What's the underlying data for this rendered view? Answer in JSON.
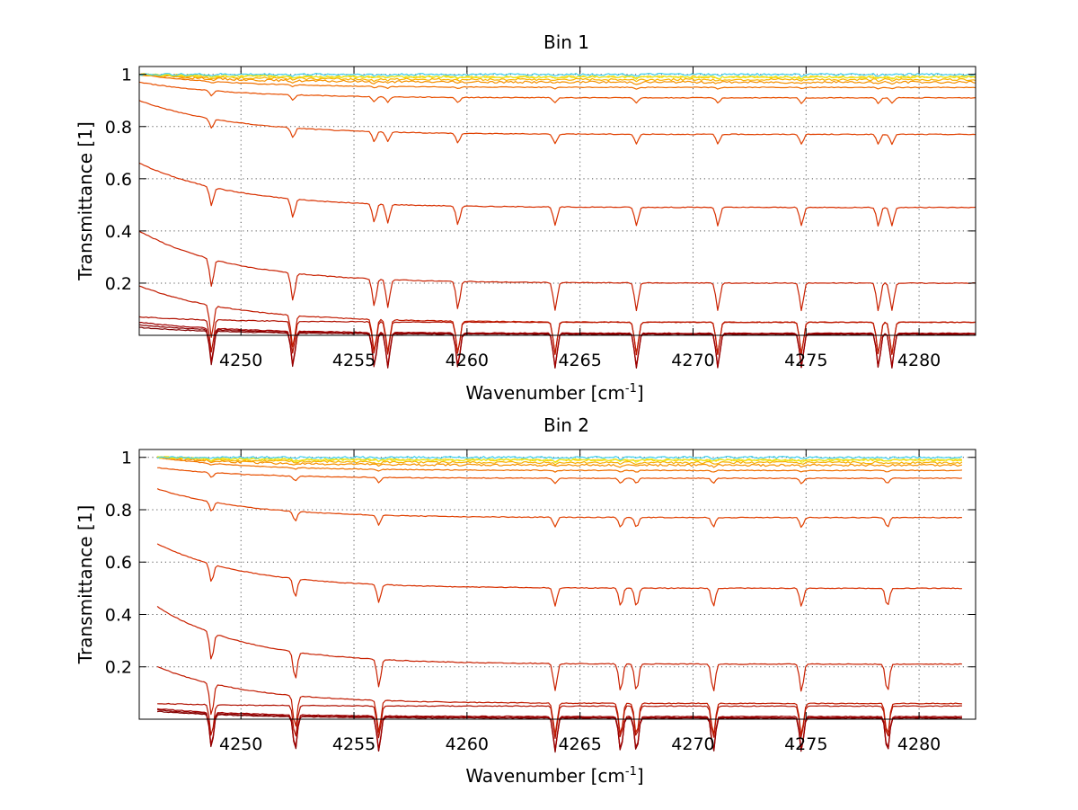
{
  "chart_data": [
    {
      "type": "line",
      "title": "Bin 1",
      "xlabel": "Wavenumber [cm",
      "xlabel_sup": "-1",
      "xlabel_end": "]",
      "ylabel": "Transmittance [1]",
      "xlim": [
        4245.5,
        4282.5
      ],
      "ylim": [
        0,
        1.03
      ],
      "xticks": [
        4250,
        4255,
        4260,
        4265,
        4270,
        4275,
        4280
      ],
      "yticks": [
        0.2,
        0.4,
        0.6,
        0.8,
        1
      ],
      "ytick_labels": [
        "0.2",
        "0.4",
        "0.6",
        "0.8",
        "1"
      ],
      "grid": true,
      "x_range": [
        4245.5,
        4282.5
      ],
      "absorption_lines_cm1": [
        4248.7,
        4252.3,
        4255.9,
        4256.5,
        4259.6,
        4263.9,
        4267.5,
        4271.1,
        4274.8,
        4278.2,
        4278.8
      ],
      "series": [
        {
          "color": "#800000",
          "start": 0.03,
          "end": 0.004
        },
        {
          "color": "#8b0000",
          "start": 0.04,
          "end": 0.006
        },
        {
          "color": "#a00000",
          "start": 0.05,
          "end": 0.008
        },
        {
          "color": "#b01000",
          "start": 0.07,
          "end": 0.05
        },
        {
          "color": "#c01a00",
          "start": 0.19,
          "end": 0.05
        },
        {
          "color": "#c82000",
          "start": 0.4,
          "end": 0.2
        },
        {
          "color": "#d83000",
          "start": 0.66,
          "end": 0.49
        },
        {
          "color": "#e04000",
          "start": 0.9,
          "end": 0.77
        },
        {
          "color": "#e85000",
          "start": 0.97,
          "end": 0.91
        },
        {
          "color": "#f07000",
          "start": 1.0,
          "end": 0.95
        },
        {
          "color": "#f59000",
          "start": 1.0,
          "end": 0.97
        },
        {
          "color": "#f8b000",
          "start": 1.0,
          "end": 0.98
        },
        {
          "color": "#ffd000",
          "start": 1.0,
          "end": 0.99
        },
        {
          "color": "#e8e820",
          "start": 1.0,
          "end": 0.99
        },
        {
          "color": "#40d0f0",
          "start": 1.0,
          "end": 1.0
        }
      ]
    },
    {
      "type": "line",
      "title": "Bin 2",
      "xlabel": "Wavenumber [cm",
      "xlabel_sup": "-1",
      "xlabel_end": "]",
      "ylabel": "Transmittance [1]",
      "xlim": [
        4245.5,
        4282.5
      ],
      "ylim": [
        0,
        1.03
      ],
      "xticks": [
        4250,
        4255,
        4260,
        4265,
        4270,
        4275,
        4280
      ],
      "yticks": [
        0.2,
        0.4,
        0.6,
        0.8,
        1
      ],
      "ytick_labels": [
        "0.2",
        "0.4",
        "0.6",
        "0.8",
        "1"
      ],
      "grid": true,
      "x_range": [
        4246.3,
        4281.9
      ],
      "absorption_lines_cm1": [
        4248.7,
        4252.4,
        4256.1,
        4263.9,
        4266.8,
        4267.5,
        4270.9,
        4274.8,
        4278.6
      ],
      "series": [
        {
          "color": "#800000",
          "start": 0.03,
          "end": 0.004
        },
        {
          "color": "#8b0000",
          "start": 0.035,
          "end": 0.006
        },
        {
          "color": "#a00000",
          "start": 0.04,
          "end": 0.01
        },
        {
          "color": "#b01000",
          "start": 0.06,
          "end": 0.05
        },
        {
          "color": "#c01a00",
          "start": 0.2,
          "end": 0.06
        },
        {
          "color": "#c82000",
          "start": 0.43,
          "end": 0.21
        },
        {
          "color": "#d83000",
          "start": 0.67,
          "end": 0.5
        },
        {
          "color": "#e04000",
          "start": 0.88,
          "end": 0.77
        },
        {
          "color": "#e85000",
          "start": 0.96,
          "end": 0.92
        },
        {
          "color": "#f07000",
          "start": 1.0,
          "end": 0.95
        },
        {
          "color": "#f59000",
          "start": 1.0,
          "end": 0.97
        },
        {
          "color": "#f8b000",
          "start": 1.0,
          "end": 0.98
        },
        {
          "color": "#ffd000",
          "start": 1.0,
          "end": 0.99
        },
        {
          "color": "#e8e820",
          "start": 1.0,
          "end": 0.99
        },
        {
          "color": "#40d0f0",
          "start": 1.0,
          "end": 1.0
        }
      ]
    }
  ]
}
